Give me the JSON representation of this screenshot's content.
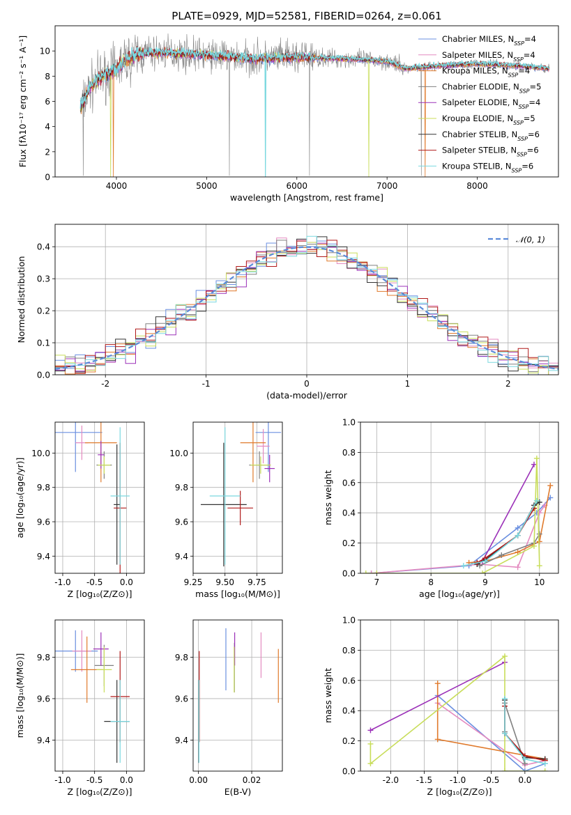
{
  "figure_title": "PLATE=0929, MJD=52581, FIBERID=0264, z=0.061",
  "colors": {
    "chabrier_miles": "#6a8fe0",
    "salpeter_miles": "#e48ac0",
    "kroupa_miles": "#e07a2c",
    "chabrier_elodie": "#808080",
    "salpeter_elodie": "#9b30b8",
    "kroupa_elodie": "#c8dd5a",
    "chabrier_stelib": "#333333",
    "salpeter_stelib": "#b01818",
    "kroupa_stelib": "#7ad8df",
    "gauss": "#5b8bd9"
  },
  "chart_data": [
    {
      "id": "spectrum",
      "type": "line",
      "title": "PLATE=0929, MJD=52581, FIBERID=0264, z=0.061",
      "xlabel": "wavelength [Angstrom, rest frame]",
      "ylabel": "Flux [fλ10⁻¹⁷ erg cm⁻² s⁻¹ A⁻¹]",
      "xlim": [
        3320,
        8900
      ],
      "ylim": [
        0,
        12
      ],
      "xticks": [
        4000,
        5000,
        6000,
        7000,
        8000
      ],
      "yticks": [
        0,
        2,
        4,
        6,
        8,
        10
      ],
      "grid": false,
      "legend_position": "right",
      "legend": [
        {
          "label": "Chabrier MILES, N",
          "sub": "SSP",
          "suffix": "=4",
          "color_key": "chabrier_miles"
        },
        {
          "label": "Salpeter MILES, N",
          "sub": "SSP",
          "suffix": "=4",
          "color_key": "salpeter_miles"
        },
        {
          "label": "Kroupa MILES, N",
          "sub": "SSP",
          "suffix": "=4",
          "color_key": "kroupa_miles"
        },
        {
          "label": "Chabrier ELODIE, N",
          "sub": "SSP",
          "suffix": "=5",
          "color_key": "chabrier_elodie"
        },
        {
          "label": "Salpeter ELODIE, N",
          "sub": "SSP",
          "suffix": "=4",
          "color_key": "salpeter_elodie"
        },
        {
          "label": "Kroupa ELODIE, N",
          "sub": "SSP",
          "suffix": "=5",
          "color_key": "kroupa_elodie"
        },
        {
          "label": "Chabrier STELIB, N",
          "sub": "SSP",
          "suffix": "=6",
          "color_key": "chabrier_stelib"
        },
        {
          "label": "Salpeter STELIB, N",
          "sub": "SSP",
          "suffix": "=6",
          "color_key": "salpeter_stelib"
        },
        {
          "label": "Kroupa STELIB, N",
          "sub": "SSP",
          "suffix": "=6",
          "color_key": "kroupa_stelib"
        }
      ],
      "continuum": {
        "x": [
          3610,
          3700,
          3800,
          3900,
          4000,
          4100,
          4300,
          4500,
          5000,
          5500,
          6000,
          6500,
          7000,
          7200,
          7500,
          8000,
          8500,
          8800
        ],
        "y": [
          5.6,
          7.0,
          7.8,
          8.2,
          8.6,
          9.3,
          9.8,
          9.9,
          9.7,
          9.4,
          9.5,
          9.4,
          9.2,
          8.6,
          8.8,
          9.0,
          8.8,
          8.6
        ]
      },
      "model_dips": [
        {
          "x": 3934,
          "y": 0.0,
          "color_key": "kroupa_elodie"
        },
        {
          "x": 3968,
          "y": 0.0,
          "color_key": "kroupa_miles"
        },
        {
          "x": 5650,
          "y": 0.0,
          "color_key": "kroupa_stelib"
        },
        {
          "x": 6800,
          "y": 0.0,
          "color_key": "kroupa_elodie"
        },
        {
          "x": 7420,
          "y": 0.0,
          "color_key": "kroupa_miles"
        }
      ],
      "data_dips": [
        3630,
        5250,
        6140,
        7380
      ]
    },
    {
      "id": "residuals",
      "type": "histogram",
      "xlabel": "(data-model)/error",
      "ylabel": "Normed distribution",
      "xlim": [
        -2.5,
        2.5
      ],
      "ylim": [
        0,
        0.47
      ],
      "xticks": [
        -2,
        -1,
        0,
        1,
        2
      ],
      "yticks": [
        0.0,
        0.1,
        0.2,
        0.3,
        0.4
      ],
      "grid": true,
      "legend_position": "top-right",
      "gauss_label": "𝒩(0, 1)",
      "bin_width": 0.1,
      "n_models": 9
    },
    {
      "id": "age_vs_Z",
      "type": "errorbar",
      "xlabel": "Z [log₁₀(Z/Z⊙)]",
      "ylabel": "age  [log₁₀(age/yr)]",
      "xlim": [
        -1.12,
        0.28
      ],
      "ylim": [
        9.3,
        10.18
      ],
      "xticks": [
        -1.0,
        -0.5,
        0.0
      ],
      "yticks": [
        9.4,
        9.6,
        9.8,
        10.0
      ],
      "grid": true,
      "points": [
        {
          "color_key": "chabrier_miles",
          "x": -0.8,
          "y": 10.12,
          "xerr": 0.42,
          "yerr": 0.23
        },
        {
          "color_key": "salpeter_miles",
          "x": -0.7,
          "y": 10.06,
          "xerr": 0.1,
          "yerr": 0.1
        },
        {
          "color_key": "kroupa_miles",
          "x": -0.4,
          "y": 10.06,
          "xerr": 0.25,
          "yerr": 0.23
        },
        {
          "color_key": "chabrier_elodie",
          "x": -0.35,
          "y": 9.93,
          "xerr": 0.12,
          "yerr": 0.08
        },
        {
          "color_key": "salpeter_elodie",
          "x": -0.4,
          "y": 9.99,
          "xerr": 0.05,
          "yerr": 0.08
        },
        {
          "color_key": "kroupa_elodie",
          "x": -0.35,
          "y": 9.93,
          "xerr": 0.1,
          "yerr": 0.05
        },
        {
          "color_key": "chabrier_stelib",
          "x": -0.15,
          "y": 9.7,
          "xerr": 0.05,
          "yerr": 0.35
        },
        {
          "color_key": "salpeter_stelib",
          "x": -0.1,
          "y": 9.68,
          "xerr": 0.1,
          "yerr": 0.38
        },
        {
          "color_key": "kroupa_stelib",
          "x": -0.1,
          "y": 9.75,
          "xerr": 0.15,
          "yerr": 0.4
        }
      ]
    },
    {
      "id": "age_vs_mass",
      "type": "errorbar",
      "xlabel": "mass [log₁₀(M/M⊙)]",
      "ylabel": "",
      "xlim": [
        9.25,
        9.95
      ],
      "ylim": [
        9.3,
        10.18
      ],
      "xticks": [
        9.25,
        9.5,
        9.75
      ],
      "yticks": [
        9.4,
        9.6,
        9.8,
        10.0
      ],
      "grid": true,
      "points": [
        {
          "color_key": "chabrier_miles",
          "x": 9.84,
          "y": 10.12,
          "xerr": 0.1,
          "yerr": 0.23
        },
        {
          "color_key": "salpeter_miles",
          "x": 9.8,
          "y": 10.04,
          "xerr": 0.05,
          "yerr": 0.1
        },
        {
          "color_key": "kroupa_miles",
          "x": 9.72,
          "y": 10.06,
          "xerr": 0.1,
          "yerr": 0.23
        },
        {
          "color_key": "chabrier_elodie",
          "x": 9.77,
          "y": 9.93,
          "xerr": 0.08,
          "yerr": 0.08
        },
        {
          "color_key": "salpeter_elodie",
          "x": 9.85,
          "y": 9.91,
          "xerr": 0.04,
          "yerr": 0.08
        },
        {
          "color_key": "kroupa_elodie",
          "x": 9.78,
          "y": 9.93,
          "xerr": 0.08,
          "yerr": 0.05
        },
        {
          "color_key": "chabrier_stelib",
          "x": 9.49,
          "y": 9.7,
          "xerr": 0.18,
          "yerr": 0.36
        },
        {
          "color_key": "salpeter_stelib",
          "x": 9.62,
          "y": 9.68,
          "xerr": 0.1,
          "yerr": 0.1
        },
        {
          "color_key": "kroupa_stelib",
          "x": 9.5,
          "y": 9.75,
          "xerr": 0.12,
          "yerr": 0.4
        }
      ]
    },
    {
      "id": "weights_vs_age",
      "type": "line",
      "xlabel": "age  [log₁₀(age/yr)]",
      "ylabel": "mass weight",
      "xlim": [
        6.7,
        10.35
      ],
      "ylim": [
        0,
        1.0
      ],
      "xticks": [
        7,
        8,
        9,
        10
      ],
      "yticks": [
        0.0,
        0.2,
        0.4,
        0.6,
        0.8,
        1.0
      ],
      "grid": true,
      "series": [
        {
          "color_key": "chabrier_miles",
          "x": [
            6.9,
            8.7,
            9.6,
            9.95,
            10.2
          ],
          "y": [
            0.0,
            0.05,
            0.3,
            0.4,
            0.5
          ]
        },
        {
          "color_key": "salpeter_miles",
          "x": [
            6.9,
            8.9,
            9.6,
            10.0,
            10.1
          ],
          "y": [
            0.0,
            0.06,
            0.04,
            0.4,
            0.45
          ]
        },
        {
          "color_key": "kroupa_miles",
          "x": [
            8.7,
            9.0,
            9.6,
            10.0,
            10.2
          ],
          "y": [
            0.07,
            0.08,
            0.14,
            0.21,
            0.58
          ]
        },
        {
          "color_key": "chabrier_elodie",
          "x": [
            8.9,
            9.3,
            9.9,
            10.0
          ],
          "y": [
            0.05,
            0.12,
            0.2,
            0.26
          ]
        },
        {
          "color_key": "salpeter_elodie",
          "x": [
            8.95,
            9.9
          ],
          "y": [
            0.08,
            0.72
          ]
        },
        {
          "color_key": "kroupa_elodie",
          "x": [
            6.8,
            7.0,
            8.95,
            9.9,
            9.95,
            10.0
          ],
          "y": [
            0.0,
            0.0,
            0.0,
            0.18,
            0.76,
            0.05
          ]
        },
        {
          "color_key": "chabrier_stelib",
          "x": [
            8.85,
            9.0,
            9.6,
            9.9,
            10.0
          ],
          "y": [
            0.06,
            0.09,
            0.25,
            0.45,
            0.47
          ]
        },
        {
          "color_key": "salpeter_stelib",
          "x": [
            8.85,
            9.0,
            9.6,
            9.9
          ],
          "y": [
            0.07,
            0.1,
            0.25,
            0.43
          ]
        },
        {
          "color_key": "kroupa_stelib",
          "x": [
            8.6,
            9.0,
            9.6,
            9.95
          ],
          "y": [
            0.05,
            0.08,
            0.25,
            0.48
          ]
        }
      ]
    },
    {
      "id": "mass_vs_Z",
      "type": "errorbar",
      "xlabel": "Z [log₁₀(Z/Z⊙)]",
      "ylabel": "mass [log₁₀(M/M⊙)]",
      "xlim": [
        -1.12,
        0.28
      ],
      "ylim": [
        9.25,
        9.98
      ],
      "xticks": [
        -1.0,
        -0.5,
        0.0
      ],
      "yticks": [
        9.4,
        9.6,
        9.8
      ],
      "grid": true,
      "points": [
        {
          "color_key": "chabrier_miles",
          "x": -0.8,
          "y": 9.83,
          "xerr": 0.35,
          "yerr": 0.1
        },
        {
          "color_key": "salpeter_miles",
          "x": -0.7,
          "y": 9.83,
          "xerr": 0.15,
          "yerr": 0.1
        },
        {
          "color_key": "kroupa_miles",
          "x": -0.62,
          "y": 9.74,
          "xerr": 0.25,
          "yerr": 0.16
        },
        {
          "color_key": "chabrier_elodie",
          "x": -0.35,
          "y": 9.76,
          "xerr": 0.15,
          "yerr": 0.1
        },
        {
          "color_key": "salpeter_elodie",
          "x": -0.4,
          "y": 9.84,
          "xerr": 0.12,
          "yerr": 0.08
        },
        {
          "color_key": "kroupa_elodie",
          "x": -0.35,
          "y": 9.74,
          "xerr": 0.12,
          "yerr": 0.11
        },
        {
          "color_key": "chabrier_stelib",
          "x": -0.15,
          "y": 9.49,
          "xerr": 0.2,
          "yerr": 0.2
        },
        {
          "color_key": "salpeter_stelib",
          "x": -0.1,
          "y": 9.61,
          "xerr": 0.15,
          "yerr": 0.22
        },
        {
          "color_key": "kroupa_stelib",
          "x": -0.1,
          "y": 9.49,
          "xerr": 0.15,
          "yerr": 0.2
        }
      ]
    },
    {
      "id": "mass_vs_ebv",
      "type": "errorbar",
      "xlabel": "E(B-V)",
      "ylabel": "",
      "xlim": [
        -0.002,
        0.0315
      ],
      "ylim": [
        9.25,
        9.98
      ],
      "xticks": [
        0.0,
        0.02
      ],
      "yticks": [
        9.4,
        9.6,
        9.8
      ],
      "grid": true,
      "points": [
        {
          "color_key": "chabrier_miles",
          "x": 0.0103,
          "y": 9.79,
          "xerr": 0,
          "yerr": 0.15
        },
        {
          "color_key": "salpeter_miles",
          "x": 0.0235,
          "y": 9.81,
          "xerr": 0,
          "yerr": 0.11
        },
        {
          "color_key": "kroupa_miles",
          "x": 0.03,
          "y": 9.71,
          "xerr": 0,
          "yerr": 0.13
        },
        {
          "color_key": "chabrier_elodie",
          "x": 0.0135,
          "y": 9.75,
          "xerr": 0,
          "yerr": 0.12
        },
        {
          "color_key": "salpeter_elodie",
          "x": 0.0136,
          "y": 9.84,
          "xerr": 0,
          "yerr": 0.08
        },
        {
          "color_key": "kroupa_elodie",
          "x": 0.0134,
          "y": 9.74,
          "xerr": 0,
          "yerr": 0.11
        },
        {
          "color_key": "chabrier_stelib",
          "x": 0.0001,
          "y": 9.49,
          "xerr": 0,
          "yerr": 0.2
        },
        {
          "color_key": "salpeter_stelib",
          "x": 0.0003,
          "y": 9.61,
          "xerr": 0,
          "yerr": 0.22
        },
        {
          "color_key": "kroupa_stelib",
          "x": 0.0002,
          "y": 9.49,
          "xerr": 0,
          "yerr": 0.2
        }
      ]
    },
    {
      "id": "weights_vs_Z",
      "type": "line",
      "xlabel": "Z [log₁₀(Z/Z⊙)]",
      "ylabel": "mass weight",
      "xlim": [
        -2.45,
        0.5
      ],
      "ylim": [
        0,
        1.0
      ],
      "xticks": [
        -2.0,
        -1.5,
        -1.0,
        -0.5,
        0.0
      ],
      "yticks": [
        0.0,
        0.2,
        0.4,
        0.6,
        0.8,
        1.0
      ],
      "grid": true,
      "series": [
        {
          "color_key": "chabrier_miles",
          "x": [
            -1.3,
            0.0,
            0.3
          ],
          "y": [
            0.5,
            0.0,
            0.05
          ]
        },
        {
          "color_key": "salpeter_miles",
          "x": [
            -1.3,
            0.0,
            0.3
          ],
          "y": [
            0.45,
            0.04,
            0.07
          ]
        },
        {
          "color_key": "kroupa_miles",
          "x": [
            -1.3,
            -1.3,
            0.3,
            0.3
          ],
          "y": [
            0.58,
            0.21,
            0.08,
            0.07
          ]
        },
        {
          "color_key": "chabrier_elodie",
          "x": [
            -0.3,
            -0.3,
            0.0
          ],
          "y": [
            0.26,
            0.45,
            0.05
          ]
        },
        {
          "color_key": "salpeter_elodie",
          "x": [
            -2.3,
            -0.3
          ],
          "y": [
            0.27,
            0.72
          ]
        },
        {
          "color_key": "kroupa_elodie",
          "x": [
            -2.3,
            -2.3,
            -0.3,
            -0.3,
            0.3
          ],
          "y": [
            0.18,
            0.05,
            0.76,
            0.0,
            0.0
          ]
        },
        {
          "color_key": "chabrier_stelib",
          "x": [
            -0.3,
            -0.3,
            0.0,
            0.3
          ],
          "y": [
            0.47,
            0.25,
            0.09,
            0.08
          ]
        },
        {
          "color_key": "salpeter_stelib",
          "x": [
            -0.3,
            -0.3,
            0.0,
            0.3
          ],
          "y": [
            0.43,
            0.25,
            0.1,
            0.07
          ]
        },
        {
          "color_key": "kroupa_stelib",
          "x": [
            -0.3,
            -0.3,
            0.0,
            0.3
          ],
          "y": [
            0.48,
            0.25,
            0.08,
            0.05
          ]
        }
      ]
    }
  ]
}
